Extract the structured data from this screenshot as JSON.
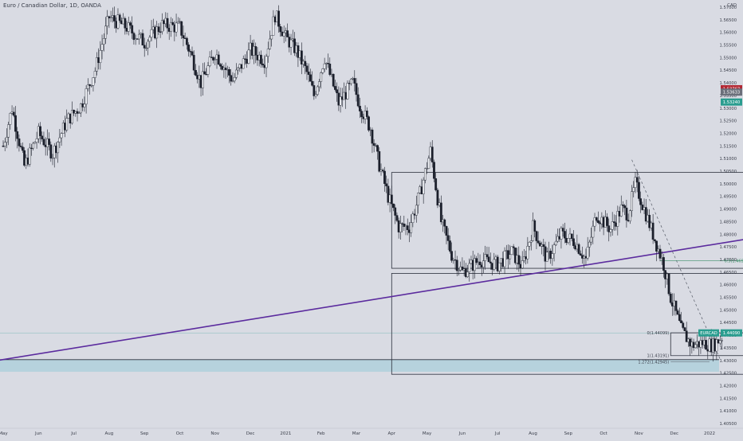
{
  "header": {
    "symbol_title": "Euro / Canadian Dollar, 1D, OANDA"
  },
  "currency_label": "CAD",
  "colors": {
    "background": "#d9dbe3",
    "candle": "#1b1f2b",
    "trendline": "#5b2b9e",
    "box_line": "#2a2f3b",
    "support_zone": "#a9cfdb",
    "price_tag": "#2a9d8f",
    "tag_red": "#b22833",
    "tag_gray": "#6b6f7a",
    "fib_green": "#3f8f6a"
  },
  "chart_data": {
    "type": "candlestick",
    "title": "Euro / Canadian Dollar, 1D, OANDA",
    "x_ticks": [
      "May",
      "Jun",
      "Jul",
      "Aug",
      "Sep",
      "Oct",
      "Nov",
      "Dec",
      "2021",
      "Feb",
      "Mar",
      "Apr",
      "May",
      "Jun",
      "Jul",
      "Aug",
      "Sep",
      "Oct",
      "Nov",
      "Dec",
      "2022"
    ],
    "y_ticks": [
      "1.57000",
      "1.56500",
      "1.56000",
      "1.55500",
      "1.55000",
      "1.54500",
      "1.54000",
      "1.53500",
      "1.53000",
      "1.52500",
      "1.52000",
      "1.51500",
      "1.51000",
      "1.50500",
      "1.50000",
      "1.49500",
      "1.49000",
      "1.48500",
      "1.48000",
      "1.47500",
      "1.47000",
      "1.46500",
      "1.46000",
      "1.45500",
      "1.45000",
      "1.44500",
      "1.44000",
      "1.43500",
      "1.43000",
      "1.42500",
      "1.42000",
      "1.41500",
      "1.41000",
      "1.40500"
    ],
    "ylim": [
      1.403,
      1.572
    ],
    "price_path": [
      {
        "m": 0.0,
        "p": 1.515
      },
      {
        "m": 0.25,
        "p": 1.53
      },
      {
        "m": 0.6,
        "p": 1.507
      },
      {
        "m": 1.0,
        "p": 1.52
      },
      {
        "m": 1.4,
        "p": 1.512
      },
      {
        "m": 1.8,
        "p": 1.525
      },
      {
        "m": 2.2,
        "p": 1.531
      },
      {
        "m": 2.6,
        "p": 1.545
      },
      {
        "m": 3.0,
        "p": 1.566
      },
      {
        "m": 3.5,
        "p": 1.562
      },
      {
        "m": 4.0,
        "p": 1.556
      },
      {
        "m": 4.5,
        "p": 1.563
      },
      {
        "m": 5.0,
        "p": 1.562
      },
      {
        "m": 5.3,
        "p": 1.552
      },
      {
        "m": 5.6,
        "p": 1.54
      },
      {
        "m": 6.0,
        "p": 1.552
      },
      {
        "m": 6.5,
        "p": 1.541
      },
      {
        "m": 7.0,
        "p": 1.553
      },
      {
        "m": 7.4,
        "p": 1.549
      },
      {
        "m": 7.7,
        "p": 1.567
      },
      {
        "m": 8.0,
        "p": 1.558
      },
      {
        "m": 8.3,
        "p": 1.553
      },
      {
        "m": 8.6,
        "p": 1.544
      },
      {
        "m": 8.8,
        "p": 1.535
      },
      {
        "m": 9.1,
        "p": 1.55
      },
      {
        "m": 9.5,
        "p": 1.532
      },
      {
        "m": 9.9,
        "p": 1.54
      },
      {
        "m": 10.1,
        "p": 1.531
      },
      {
        "m": 10.4,
        "p": 1.522
      },
      {
        "m": 10.6,
        "p": 1.51
      },
      {
        "m": 10.9,
        "p": 1.495
      },
      {
        "m": 11.2,
        "p": 1.483
      },
      {
        "m": 11.5,
        "p": 1.483
      },
      {
        "m": 11.8,
        "p": 1.496
      },
      {
        "m": 12.1,
        "p": 1.513
      },
      {
        "m": 12.4,
        "p": 1.485
      },
      {
        "m": 12.7,
        "p": 1.472
      },
      {
        "m": 13.0,
        "p": 1.465
      },
      {
        "m": 13.5,
        "p": 1.47
      },
      {
        "m": 14.0,
        "p": 1.468
      },
      {
        "m": 14.4,
        "p": 1.473
      },
      {
        "m": 14.7,
        "p": 1.467
      },
      {
        "m": 15.0,
        "p": 1.483
      },
      {
        "m": 15.4,
        "p": 1.47
      },
      {
        "m": 15.8,
        "p": 1.48
      },
      {
        "m": 16.2,
        "p": 1.477
      },
      {
        "m": 16.5,
        "p": 1.47
      },
      {
        "m": 16.8,
        "p": 1.488
      },
      {
        "m": 17.2,
        "p": 1.482
      },
      {
        "m": 17.5,
        "p": 1.49
      },
      {
        "m": 17.7,
        "p": 1.488
      },
      {
        "m": 17.9,
        "p": 1.5
      },
      {
        "m": 18.1,
        "p": 1.492
      },
      {
        "m": 18.4,
        "p": 1.48
      },
      {
        "m": 18.7,
        "p": 1.468
      },
      {
        "m": 18.9,
        "p": 1.455
      },
      {
        "m": 19.2,
        "p": 1.442
      },
      {
        "m": 19.5,
        "p": 1.436
      },
      {
        "m": 19.8,
        "p": 1.437
      },
      {
        "m": 20.1,
        "p": 1.436
      },
      {
        "m": 20.4,
        "p": 1.44
      }
    ],
    "boxes": [
      {
        "name": "upper-range-box",
        "m0": 11.0,
        "m1": 21.75,
        "p_top": 1.5045,
        "p_bottom": 1.4665
      },
      {
        "name": "lower-range-box",
        "m0": 11.0,
        "m1": 21.75,
        "p_top": 1.4645,
        "p_bottom": 1.4245
      },
      {
        "name": "current-range-box",
        "m0": 18.9,
        "m1": 21.3,
        "p_top": 1.4409,
        "p_bottom": 1.4319
      }
    ],
    "trendline": {
      "m0": -0.15,
      "p0": 1.43,
      "m1": 21.8,
      "p1": 1.4798
    },
    "support_zone": {
      "p_top": 1.4303,
      "p_bottom": 1.4255
    },
    "support_line": {
      "p": 1.4303
    },
    "fib_levels": [
      {
        "label": "0.5(1.46953)",
        "price": 1.46953,
        "m0": 18.6,
        "m1": 21.2
      },
      {
        "label": "0(1.44099)",
        "price": 1.44099,
        "m0": 18.9,
        "m1": 21.3
      },
      {
        "label": "1(1.43191)",
        "price": 1.43191,
        "m0": 18.9,
        "m1": 20.0
      },
      {
        "label": "1.272(1.42945)",
        "price": 1.42945,
        "m0": 18.9,
        "m1": 20.0
      }
    ],
    "dashed_trend": {
      "m0": 17.8,
      "p0": 1.5095,
      "m1": 20.3,
      "p1": 1.4305
    },
    "current_price": {
      "label": "EURCAD",
      "value": "1.44090",
      "price": 1.4409
    },
    "right_tags": [
      {
        "value": "1.53767",
        "price": 1.53767,
        "color_key": "tag_red"
      },
      {
        "value": "1.53633",
        "price": 1.53633,
        "color_key": "tag_gray"
      },
      {
        "value": "1.53240",
        "price": 1.5324,
        "color_key": "price_tag"
      },
      {
        "value": "1.44090",
        "price": 1.4409,
        "color_key": "price_tag"
      }
    ],
    "grid": false,
    "legend": "none"
  }
}
